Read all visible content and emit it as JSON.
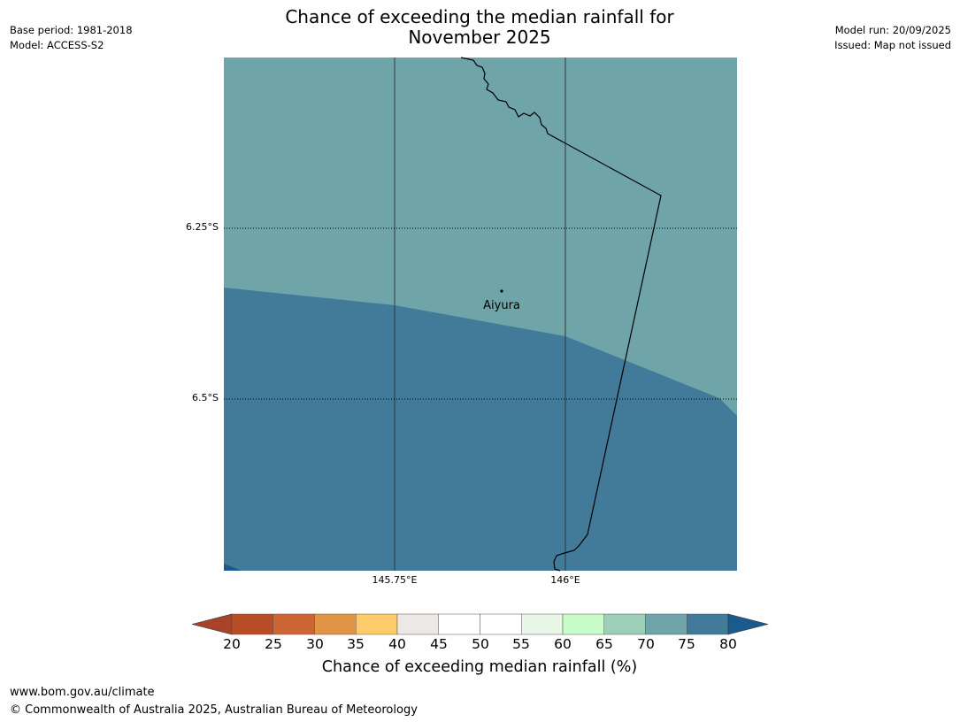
{
  "title": {
    "line1": "Chance of exceeding the median rainfall for",
    "line2": "November 2025"
  },
  "meta_left": {
    "base_period": "Base period: 1981-2018",
    "model": "Model: ACCESS-S2"
  },
  "meta_right": {
    "model_run": "Model run: 20/09/2025",
    "issued": "Issued: Map not issued"
  },
  "map": {
    "lat_labels": [
      "6.25°S",
      "6.5°S"
    ],
    "lon_labels": [
      "145.75°E",
      "146°E"
    ],
    "place": {
      "name": "Aiyura"
    },
    "colors": {
      "band_70_75": "#6fa4a8",
      "band_75_80": "#427a99",
      "band_above_80": "#1a5a8e"
    }
  },
  "colorbar": {
    "ticks": [
      "20",
      "25",
      "30",
      "35",
      "40",
      "45",
      "50",
      "55",
      "60",
      "65",
      "70",
      "75",
      "80"
    ],
    "colors": [
      "#a8432a",
      "#b84c27",
      "#cc6634",
      "#e29446",
      "#fdcb6a",
      "#ece8e5",
      "#ffffff",
      "#ffffff",
      "#e8f6e8",
      "#c8fcc8",
      "#9dcfb8",
      "#6fa4a8",
      "#427a99",
      "#1a5a8e"
    ],
    "label": "Chance of exceeding median rainfall (%)"
  },
  "footer": {
    "url": "www.bom.gov.au/climate",
    "copyright": "© Commonwealth of Australia 2025, Australian Bureau of Meteorology"
  }
}
